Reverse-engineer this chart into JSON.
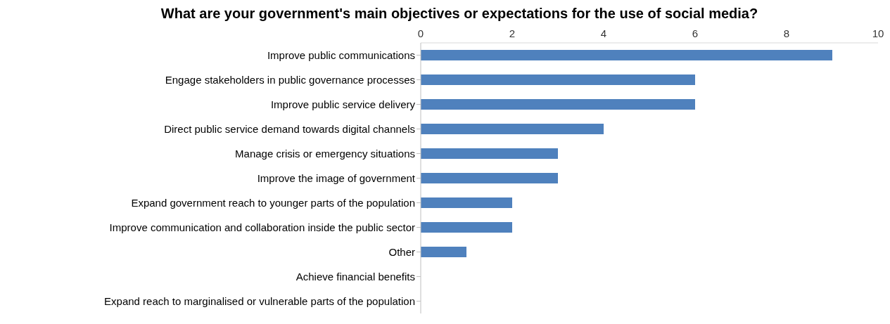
{
  "chart_data": {
    "type": "bar",
    "orientation": "horizontal",
    "title": "What are your government's main objectives or expectations for the use of social media?",
    "categories": [
      "Improve public communications",
      "Engage stakeholders in public governance processes",
      "Improve public service delivery",
      "Direct public service demand towards digital channels",
      "Manage crisis or emergency situations",
      "Improve the image of government",
      "Expand government reach to younger parts of the population",
      "Improve communication and collaboration inside the public sector",
      "Other",
      "Achieve financial benefits",
      "Expand reach to marginalised or vulnerable parts of the population"
    ],
    "values": [
      9,
      6,
      6,
      4,
      3,
      3,
      2,
      2,
      1,
      0,
      0
    ],
    "color": "#4f81bd",
    "xlim": [
      0,
      10
    ],
    "xticks": [
      0,
      2,
      4,
      6,
      8,
      10
    ],
    "grid": false
  }
}
